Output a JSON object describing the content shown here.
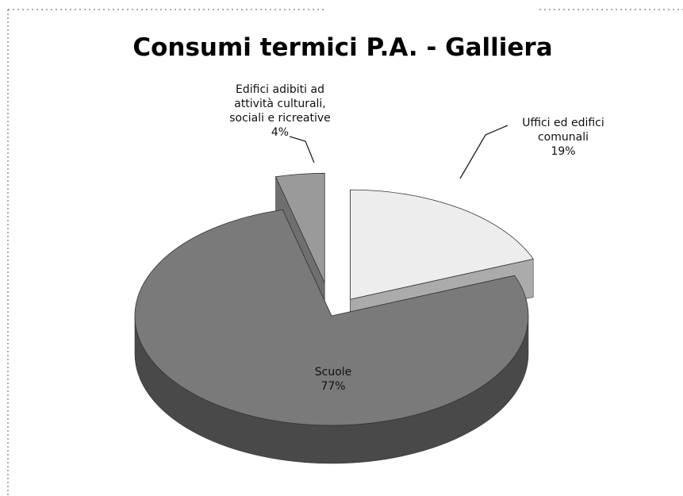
{
  "chart_data": {
    "type": "pie",
    "title": "Consumi termici P.A. - Galliera",
    "categories": [
      "Uffici ed edifici comunali",
      "Scuole",
      "Edifici adibiti ad attività culturali, sociali e ricreative"
    ],
    "values": [
      19,
      77,
      4
    ],
    "value_labels": [
      "19%",
      "77%",
      "4%"
    ],
    "colors": [
      "#ededed",
      "#7a7a7a",
      "#9a9a9a"
    ]
  }
}
